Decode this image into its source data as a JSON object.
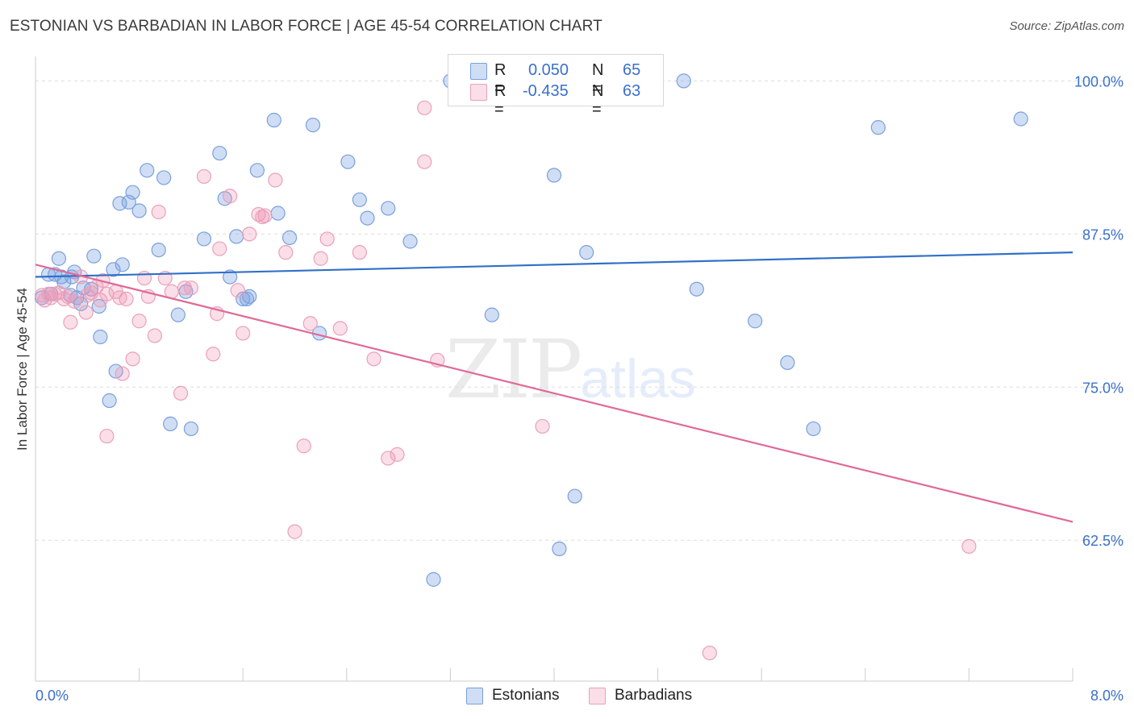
{
  "header": {
    "title": "ESTONIAN VS BARBADIAN IN LABOR FORCE | AGE 45-54 CORRELATION CHART",
    "source": "Source: ZipAtlas.com"
  },
  "legend": {
    "row1": {
      "r_label": "R =",
      "r_value": "0.050",
      "n_label": "N =",
      "n_value": "65"
    },
    "row2": {
      "r_label": "R =",
      "r_value": "-0.435",
      "n_label": "N =",
      "n_value": "63"
    }
  },
  "bottom_legend": {
    "series1": "Estonians",
    "series2": "Barbadians"
  },
  "watermark": {
    "zip": "ZIP",
    "atlas": "atlas"
  },
  "colors": {
    "blue_fill": "rgba(120,160,225,0.35)",
    "blue_stroke": "#7aa0dc",
    "blue_line": "#3070c8",
    "pink_fill": "rgba(240,150,180,0.30)",
    "pink_stroke": "#eba0ba",
    "pink_line": "#e06a96",
    "tick_label": "#3b6fcc",
    "grid": "#dddddd"
  },
  "chart_data": {
    "type": "scatter",
    "title": "ESTONIAN VS BARBADIAN IN LABOR FORCE | AGE 45-54 CORRELATION CHART",
    "xlabel": "",
    "ylabel": "In Labor Force | Age 45-54",
    "xlim": [
      0.0,
      8.0
    ],
    "ylim": [
      51.0,
      102.0
    ],
    "x_tick_labels": [
      "0.0%",
      "8.0%"
    ],
    "y_ticks": [
      62.5,
      75.0,
      87.5,
      100.0
    ],
    "y_tick_labels": [
      "62.5%",
      "75.0%",
      "87.5%",
      "100.0%"
    ],
    "grid": true,
    "legend_position": "top-center",
    "series": [
      {
        "name": "Estonians",
        "r": 0.05,
        "n": 65,
        "trend": {
          "x": [
            0.0,
            8.0
          ],
          "y": [
            84.0,
            86.0
          ]
        },
        "points": [
          [
            0.05,
            82.3
          ],
          [
            0.1,
            84.2
          ],
          [
            0.15,
            84.2
          ],
          [
            0.18,
            85.5
          ],
          [
            0.22,
            83.6
          ],
          [
            0.27,
            82.5
          ],
          [
            0.3,
            84.4
          ],
          [
            0.32,
            82.3
          ],
          [
            0.37,
            83.1
          ],
          [
            0.45,
            85.7
          ],
          [
            0.49,
            81.6
          ],
          [
            0.5,
            79.1
          ],
          [
            0.57,
            73.9
          ],
          [
            0.6,
            84.6
          ],
          [
            0.62,
            76.3
          ],
          [
            0.67,
            85.0
          ],
          [
            0.72,
            90.1
          ],
          [
            0.75,
            90.9
          ],
          [
            0.8,
            89.4
          ],
          [
            0.86,
            92.7
          ],
          [
            0.95,
            86.2
          ],
          [
            0.99,
            92.1
          ],
          [
            1.1,
            80.9
          ],
          [
            1.2,
            71.6
          ],
          [
            1.3,
            87.1
          ],
          [
            1.42,
            94.1
          ],
          [
            1.46,
            90.4
          ],
          [
            1.55,
            87.3
          ],
          [
            1.63,
            82.2
          ],
          [
            1.65,
            82.4
          ],
          [
            1.71,
            92.7
          ],
          [
            1.84,
            96.8
          ],
          [
            1.87,
            89.2
          ],
          [
            1.96,
            87.2
          ],
          [
            2.14,
            96.4
          ],
          [
            2.19,
            79.4
          ],
          [
            2.41,
            93.4
          ],
          [
            2.5,
            90.3
          ],
          [
            2.56,
            88.8
          ],
          [
            2.72,
            89.6
          ],
          [
            2.89,
            86.9
          ],
          [
            3.2,
            100.0
          ],
          [
            3.52,
            80.9
          ],
          [
            4.0,
            92.3
          ],
          [
            4.04,
            61.8
          ],
          [
            4.16,
            66.1
          ],
          [
            4.25,
            86.0
          ],
          [
            5.0,
            100.0
          ],
          [
            5.1,
            83.0
          ],
          [
            5.55,
            80.4
          ],
          [
            5.8,
            77.0
          ],
          [
            6.0,
            71.6
          ],
          [
            6.5,
            96.2
          ],
          [
            7.6,
            96.9
          ],
          [
            1.04,
            72.0
          ],
          [
            0.28,
            84.0
          ],
          [
            0.12,
            82.6
          ],
          [
            0.43,
            83.0
          ],
          [
            0.2,
            84.0
          ],
          [
            1.6,
            82.2
          ],
          [
            3.07,
            59.3
          ],
          [
            1.16,
            82.8
          ],
          [
            0.65,
            90.0
          ],
          [
            1.5,
            84.0
          ],
          [
            0.35,
            81.8
          ]
        ]
      },
      {
        "name": "Barbadians",
        "r": -0.435,
        "n": 63,
        "trend": {
          "x": [
            0.0,
            8.0
          ],
          "y": [
            85.0,
            64.0
          ]
        },
        "points": [
          [
            0.05,
            82.5
          ],
          [
            0.07,
            82.1
          ],
          [
            0.1,
            82.6
          ],
          [
            0.12,
            82.3
          ],
          [
            0.15,
            82.6
          ],
          [
            0.18,
            82.7
          ],
          [
            0.22,
            82.2
          ],
          [
            0.27,
            80.3
          ],
          [
            0.3,
            82.0
          ],
          [
            0.35,
            84.0
          ],
          [
            0.39,
            81.1
          ],
          [
            0.43,
            82.7
          ],
          [
            0.47,
            83.2
          ],
          [
            0.5,
            82.1
          ],
          [
            0.52,
            83.7
          ],
          [
            0.55,
            71.0
          ],
          [
            0.62,
            82.8
          ],
          [
            0.67,
            76.1
          ],
          [
            0.7,
            82.2
          ],
          [
            0.75,
            77.3
          ],
          [
            0.8,
            80.4
          ],
          [
            0.84,
            83.9
          ],
          [
            0.87,
            82.4
          ],
          [
            0.92,
            79.2
          ],
          [
            0.95,
            89.3
          ],
          [
            1.0,
            83.9
          ],
          [
            1.05,
            82.8
          ],
          [
            1.12,
            74.5
          ],
          [
            1.15,
            83.1
          ],
          [
            1.2,
            83.1
          ],
          [
            1.3,
            92.2
          ],
          [
            1.37,
            77.7
          ],
          [
            1.42,
            86.3
          ],
          [
            1.5,
            90.6
          ],
          [
            1.56,
            82.9
          ],
          [
            1.6,
            79.4
          ],
          [
            1.65,
            87.5
          ],
          [
            1.72,
            89.1
          ],
          [
            1.77,
            89.0
          ],
          [
            1.85,
            91.9
          ],
          [
            1.93,
            86.0
          ],
          [
            2.0,
            63.2
          ],
          [
            2.07,
            70.2
          ],
          [
            2.12,
            80.2
          ],
          [
            2.2,
            85.5
          ],
          [
            2.25,
            87.1
          ],
          [
            2.35,
            79.8
          ],
          [
            2.61,
            77.3
          ],
          [
            2.72,
            69.2
          ],
          [
            2.79,
            69.5
          ],
          [
            3.0,
            97.8
          ],
          [
            3.0,
            93.4
          ],
          [
            3.1,
            77.2
          ],
          [
            3.91,
            71.8
          ],
          [
            5.2,
            53.3
          ],
          [
            7.2,
            62.0
          ],
          [
            0.65,
            82.3
          ],
          [
            0.4,
            82.5
          ],
          [
            1.4,
            81.0
          ],
          [
            1.75,
            88.9
          ],
          [
            0.25,
            82.4
          ],
          [
            0.55,
            82.6
          ],
          [
            2.5,
            86.0
          ]
        ]
      }
    ]
  }
}
